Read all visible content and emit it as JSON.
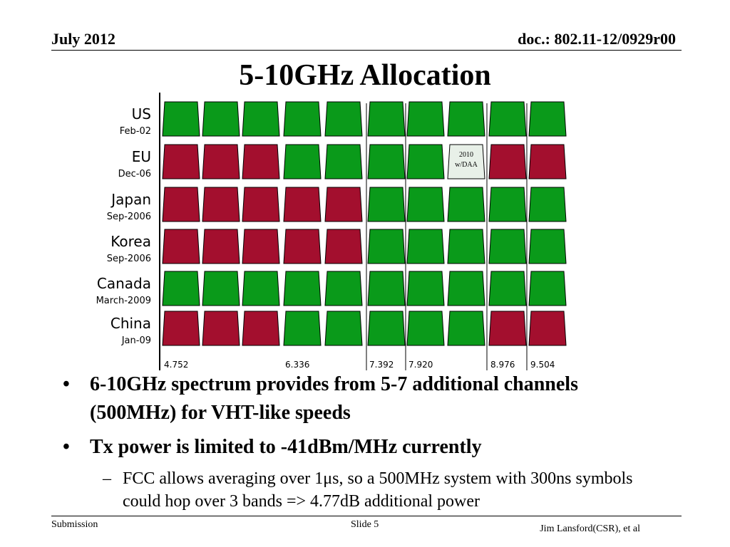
{
  "header": {
    "date": "July 2012",
    "doc": "doc.: 802.11-12/0929r00"
  },
  "title": "5-10GHz Allocation",
  "diagram": {
    "colors": {
      "allowed": "#0a9a1a",
      "restricted": "#a30f2e",
      "conditional": "#e8f0e8"
    },
    "rows": [
      {
        "name": "US",
        "date": "Feb-02",
        "cells": [
          "allowed",
          "allowed",
          "allowed",
          "allowed",
          "allowed",
          "allowed",
          "allowed",
          "allowed",
          "allowed",
          "allowed"
        ]
      },
      {
        "name": "EU",
        "date": "Dec-06",
        "cells": [
          "restricted",
          "restricted",
          "restricted",
          "allowed",
          "allowed",
          "allowed",
          "allowed",
          "conditional",
          "restricted",
          "restricted"
        ],
        "note": [
          "2010",
          "w/DAA"
        ]
      },
      {
        "name": "Japan",
        "date": "Sep-2006",
        "cells": [
          "restricted",
          "restricted",
          "restricted",
          "restricted",
          "restricted",
          "allowed",
          "allowed",
          "allowed",
          "allowed",
          "allowed"
        ]
      },
      {
        "name": "Korea",
        "date": "Sep-2006",
        "cells": [
          "restricted",
          "restricted",
          "restricted",
          "restricted",
          "restricted",
          "allowed",
          "allowed",
          "allowed",
          "allowed",
          "allowed"
        ]
      },
      {
        "name": "Canada",
        "date": "March-2009",
        "cells": [
          "allowed",
          "allowed",
          "allowed",
          "allowed",
          "allowed",
          "allowed",
          "allowed",
          "allowed",
          "allowed",
          "allowed"
        ]
      },
      {
        "name": "China",
        "date": "Jan-09",
        "cells": [
          "restricted",
          "restricted",
          "restricted",
          "allowed",
          "allowed",
          "allowed",
          "allowed",
          "allowed",
          "restricted",
          "restricted"
        ]
      }
    ],
    "frequencies": [
      "4.752",
      null,
      null,
      "6.336",
      null,
      "7.392",
      "7.920",
      null,
      "8.976",
      "9.504"
    ]
  },
  "bullets": [
    {
      "text": "6-10GHz spectrum provides from 5-7 additional channels (500MHz) for VHT-like speeds"
    },
    {
      "text": "Tx power is limited to -41dBm/MHz currently",
      "sub": [
        "FCC allows averaging over 1μs, so a 500MHz system with 300ns symbols could hop over 3 bands => 4.77dB additional power"
      ]
    }
  ],
  "footer": {
    "left": "Submission",
    "center": "Slide 5",
    "right": "Jim Lansford(CSR), et al"
  }
}
